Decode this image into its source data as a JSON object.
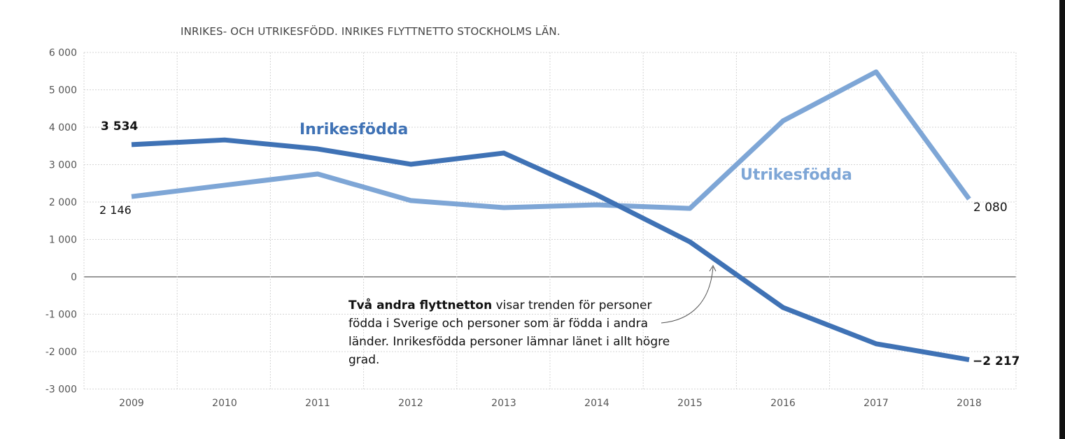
{
  "chart_data": {
    "type": "line",
    "title": "INRIKES- OCH UTRIKESFÖDD. INRIKES FLYTTNETTO STOCKHOLMS LÄN.",
    "xlabel": "",
    "ylabel": "",
    "x": [
      "2009",
      "2010",
      "2011",
      "2012",
      "2013",
      "2014",
      "2015",
      "2016",
      "2017",
      "2018"
    ],
    "ylim": [
      -3000,
      6000
    ],
    "yticks": [
      6000,
      5000,
      4000,
      3000,
      2000,
      1000,
      0,
      -1000,
      -2000,
      -3000
    ],
    "ytick_labels": [
      "6 000",
      "5 000",
      "4 000",
      "3 000",
      "2 000",
      "1 000",
      "0",
      "-1 000",
      "-2 000",
      "-3 000"
    ],
    "grid": true,
    "series": [
      {
        "name": "Inrikesfödda",
        "color": "#3f72b5",
        "values": [
          3534,
          3660,
          3420,
          3010,
          3310,
          2190,
          935,
          -820,
          -1790,
          -2217
        ],
        "start_label": "3 534",
        "end_label": "−2 217"
      },
      {
        "name": "Utrikesfödda",
        "color": "#7ea6d6",
        "values": [
          2146,
          2450,
          2750,
          2040,
          1850,
          1925,
          1830,
          4170,
          5480,
          2080
        ],
        "start_label": "2 146",
        "end_label": "2 080"
      }
    ],
    "annotation": {
      "bold": "Två andra flyttnetton",
      "text": " visar trenden för personer födda i Sverige och personer som är födda i andra länder. Inrikesfödda personer lämnar länet i allt högre grad."
    }
  }
}
